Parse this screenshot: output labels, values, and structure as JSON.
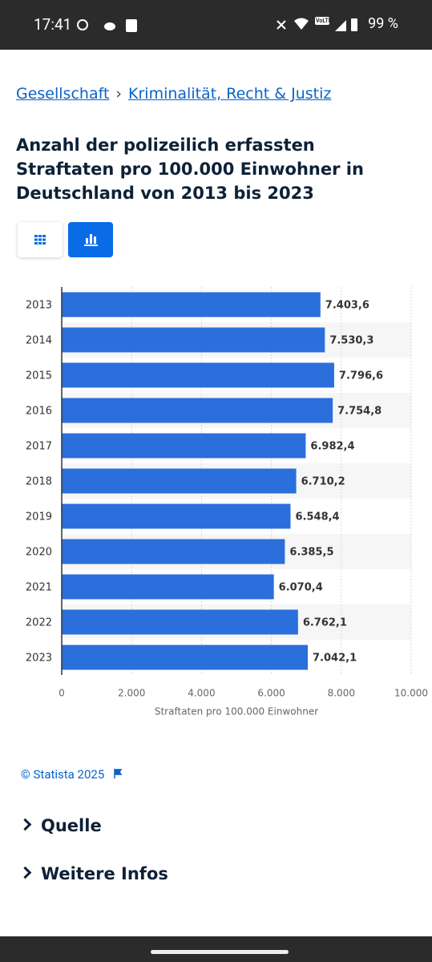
{
  "status_bar": {
    "time": "17:41",
    "network": "VoLTE",
    "battery": "99 %"
  },
  "breadcrumb": [
    "Gesellschaft",
    "›",
    "Kriminalität, Recht & Justiz"
  ],
  "chart_data": {
    "type": "hbar",
    "title": "Anzahl der polizeilich erfassten Straftaten pro 100.000 Einwohner in Deutschland von 2013 bis 2023",
    "categories": [
      "2013",
      "2014",
      "2015",
      "2016",
      "2017",
      "2018",
      "2019",
      "2020",
      "2021",
      "2022",
      "2023"
    ],
    "values": [
      7403.6,
      7530.3,
      7796.6,
      7754.8,
      6982.4,
      6710.2,
      6548.4,
      6385.5,
      6070.4,
      6762.1,
      7042.1
    ],
    "value_labels": [
      "7.403,6",
      "7.530,3",
      "7.796,6",
      "7.754,8",
      "6.982,4",
      "6.710,2",
      "6.548,4",
      "6.385,5",
      "6.070,4",
      "6.762,1",
      "7.042,1"
    ],
    "color": "#2a6fdb",
    "xlim": [
      0,
      10000
    ],
    "xticks": [
      0,
      {
        "value": 2000,
        "label": "2.000"
      },
      {
        "value": 4000,
        "label": "4.000"
      },
      {
        "value": 6000,
        "label": "6.000"
      },
      {
        "value": 8000,
        "label": "8.000"
      },
      {
        "value": 10000,
        "label": "10.000"
      }
    ],
    "xlabel": "Straftaten pro 100.000 Einwohner",
    "grid": true
  },
  "footer": {
    "copyright": "© Statista 2025",
    "sections": [
      "Quelle",
      "Weitere Infos"
    ]
  }
}
